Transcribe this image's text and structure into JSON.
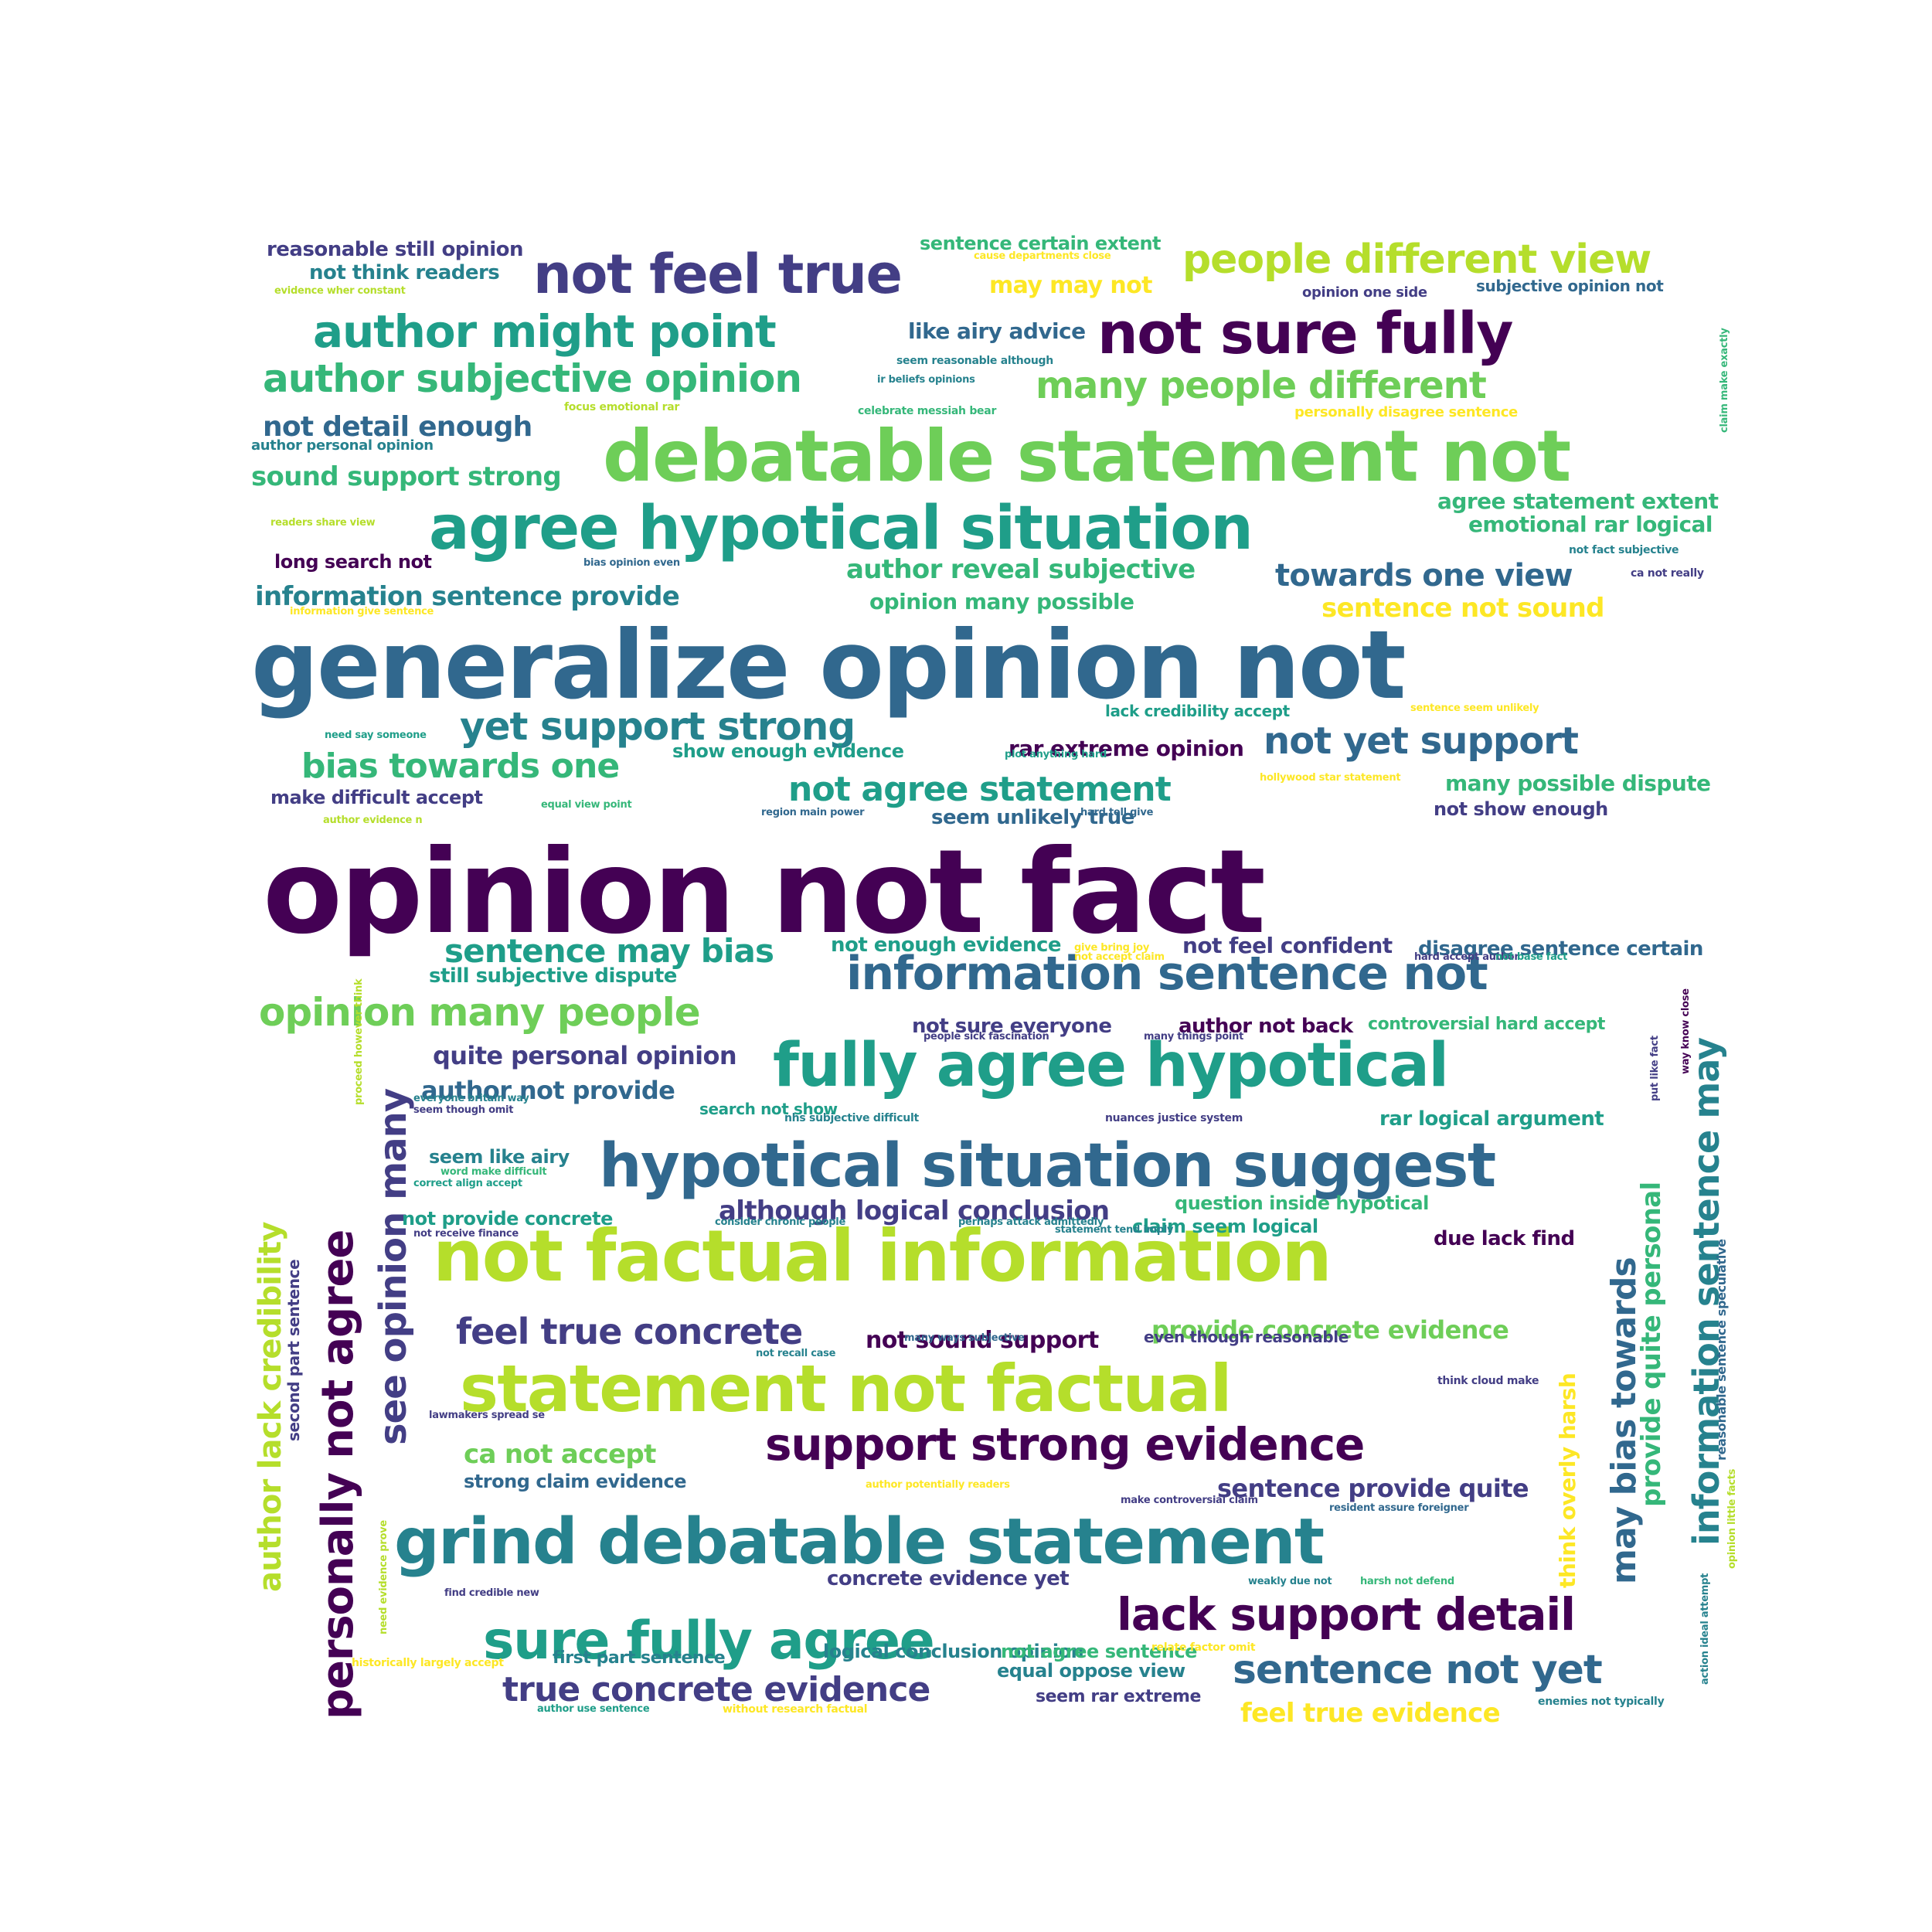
{
  "palette": {
    "c1": "#440154",
    "c2": "#433e85",
    "c3": "#31688e",
    "c4": "#26828e",
    "c5": "#1f9e89",
    "c6": "#35b779",
    "c7": "#6ece58",
    "c8": "#b5de2b",
    "c9": "#fde725"
  },
  "words": [
    {
      "text": "opinion not fact",
      "color": "c1",
      "size": 150
    },
    {
      "text": "generalize opinion not",
      "color": "c3",
      "size": 122
    },
    {
      "text": "debatable statement not",
      "color": "c7",
      "size": 92
    },
    {
      "text": "not factual information",
      "color": "c8",
      "size": 92
    },
    {
      "text": "statement not factual",
      "color": "c8",
      "size": 84
    },
    {
      "text": "grind debatable statement",
      "color": "c4",
      "size": 82
    },
    {
      "text": "hypotical situation suggest",
      "color": "c3",
      "size": 78
    },
    {
      "text": "agree hypotical situation",
      "color": "c5",
      "size": 78
    },
    {
      "text": "fully agree hypotical",
      "color": "c5",
      "size": 78
    },
    {
      "text": "not sure fully",
      "color": "c1",
      "size": 74
    },
    {
      "text": "not feel true",
      "color": "c2",
      "size": 70
    },
    {
      "text": "sure fully agree",
      "color": "c5",
      "size": 68
    },
    {
      "text": "information sentence not",
      "color": "c3",
      "size": 60
    },
    {
      "text": "support strong evidence",
      "color": "c1",
      "size": 58
    },
    {
      "text": "lack support detail",
      "color": "c1",
      "size": 58
    },
    {
      "text": "author might point",
      "color": "c5",
      "size": 58
    },
    {
      "text": "personally not agree",
      "color": "c1",
      "size": 56,
      "vertical": true
    },
    {
      "text": "people different view",
      "color": "c8",
      "size": 52
    },
    {
      "text": "sentence not yet",
      "color": "c3",
      "size": 52
    },
    {
      "text": "yet support strong",
      "color": "c4",
      "size": 50
    },
    {
      "text": "author subjective opinion",
      "color": "c6",
      "size": 50
    },
    {
      "text": "opinion many people",
      "color": "c7",
      "size": 50
    },
    {
      "text": "not yet support",
      "color": "c3",
      "size": 48
    },
    {
      "text": "see opinion many",
      "color": "c2",
      "size": 48,
      "vertical": true
    },
    {
      "text": "many people different",
      "color": "c7",
      "size": 48
    },
    {
      "text": "information sentence may",
      "color": "c4",
      "size": 46,
      "vertical": true
    },
    {
      "text": "feel true concrete",
      "color": "c2",
      "size": 46
    },
    {
      "text": "not agree statement",
      "color": "c5",
      "size": 44
    },
    {
      "text": "bias towards one",
      "color": "c6",
      "size": 44
    },
    {
      "text": "may bias towards",
      "color": "c3",
      "size": 44,
      "vertical": true
    },
    {
      "text": "true concrete evidence",
      "color": "c2",
      "size": 44
    },
    {
      "text": "sentence may bias",
      "color": "c5",
      "size": 42
    },
    {
      "text": "author lack credibility",
      "color": "c8",
      "size": 40,
      "vertical": true
    },
    {
      "text": "towards one view",
      "color": "c3",
      "size": 40
    },
    {
      "text": "not detail enough",
      "color": "c3",
      "size": 36
    },
    {
      "text": "sound support strong",
      "color": "c6",
      "size": 34
    },
    {
      "text": "author reveal subjective",
      "color": "c6",
      "size": 34
    },
    {
      "text": "information sentence provide",
      "color": "c4",
      "size": 34
    },
    {
      "text": "although logical conclusion",
      "color": "c2",
      "size": 34
    },
    {
      "text": "provide quite personal",
      "color": "c6",
      "size": 34,
      "vertical": true
    },
    {
      "text": "feel true evidence",
      "color": "c9",
      "size": 34
    },
    {
      "text": "sentence not sound",
      "color": "c9",
      "size": 34
    },
    {
      "text": "quite personal opinion",
      "color": "c2",
      "size": 32
    },
    {
      "text": "author not provide",
      "color": "c3",
      "size": 32
    },
    {
      "text": "ca not accept",
      "color": "c7",
      "size": 34
    },
    {
      "text": "provide concrete evidence",
      "color": "c7",
      "size": 32
    },
    {
      "text": "sentence provide quite",
      "color": "c2",
      "size": 32
    },
    {
      "text": "may may not",
      "color": "c9",
      "size": 30
    },
    {
      "text": "like airy advice",
      "color": "c3",
      "size": 28
    },
    {
      "text": "not sound support",
      "color": "c1",
      "size": 30
    },
    {
      "text": "think overly harsh",
      "color": "c9",
      "size": 28,
      "vertical": true
    },
    {
      "text": "agree statement extent",
      "color": "c6",
      "size": 28
    },
    {
      "text": "emotional rar logical",
      "color": "c6",
      "size": 28
    },
    {
      "text": "opinion many possible",
      "color": "c6",
      "size": 28
    },
    {
      "text": "many possible dispute",
      "color": "c6",
      "size": 28
    },
    {
      "text": "disagree sentence certain",
      "color": "c3",
      "size": 26
    },
    {
      "text": "not feel confident",
      "color": "c2",
      "size": 28
    },
    {
      "text": "not enough evidence",
      "color": "c5",
      "size": 26
    },
    {
      "text": "still subjective dispute",
      "color": "c5",
      "size": 26
    },
    {
      "text": "rar extreme opinion",
      "color": "c1",
      "size": 28
    },
    {
      "text": "rar logical argument",
      "color": "c5",
      "size": 26
    },
    {
      "text": "reasonable still opinion",
      "color": "c2",
      "size": 26
    },
    {
      "text": "not think readers",
      "color": "c4",
      "size": 26
    },
    {
      "text": "sentence certain extent",
      "color": "c6",
      "size": 24
    },
    {
      "text": "show enough evidence",
      "color": "c5",
      "size": 24
    },
    {
      "text": "make difficult accept",
      "color": "c2",
      "size": 24
    },
    {
      "text": "seem unlikely true",
      "color": "c3",
      "size": 26
    },
    {
      "text": "not show enough",
      "color": "c2",
      "size": 24
    },
    {
      "text": "long search not",
      "color": "c1",
      "size": 24
    },
    {
      "text": "not sure everyone",
      "color": "c2",
      "size": 26
    },
    {
      "text": "author not back",
      "color": "c1",
      "size": 26
    },
    {
      "text": "controversial hard accept",
      "color": "c6",
      "size": 22
    },
    {
      "text": "seem like airy",
      "color": "c4",
      "size": 24
    },
    {
      "text": "question inside hypotical",
      "color": "c6",
      "size": 24
    },
    {
      "text": "claim seem logical",
      "color": "c5",
      "size": 24
    },
    {
      "text": "not provide concrete",
      "color": "c5",
      "size": 24
    },
    {
      "text": "due lack find",
      "color": "c1",
      "size": 26
    },
    {
      "text": "strong claim evidence",
      "color": "c3",
      "size": 24
    },
    {
      "text": "concrete evidence yet",
      "color": "c2",
      "size": 26
    },
    {
      "text": "logical conclusion opinion",
      "color": "c4",
      "size": 24
    },
    {
      "text": "first part sentence",
      "color": "c4",
      "size": 22
    },
    {
      "text": "not agree sentence",
      "color": "c6",
      "size": 24
    },
    {
      "text": "equal oppose view",
      "color": "c4",
      "size": 24
    },
    {
      "text": "seem rar extreme",
      "color": "c2",
      "size": 22
    },
    {
      "text": "search not show",
      "color": "c5",
      "size": 20
    },
    {
      "text": "even though reasonable",
      "color": "c2",
      "size": 20
    },
    {
      "text": "lack credibility accept",
      "color": "c5",
      "size": 20
    },
    {
      "text": "opinion one side",
      "color": "c2",
      "size": 18
    },
    {
      "text": "subjective opinion not",
      "color": "c3",
      "size": 20
    },
    {
      "text": "author personal opinion",
      "color": "c4",
      "size": 18
    },
    {
      "text": "second part sentence",
      "color": "c2",
      "size": 20,
      "vertical": true
    },
    {
      "text": "reasonable sentence speculative",
      "color": "c3",
      "size": 16,
      "vertical": true
    },
    {
      "text": "personally disagree sentence",
      "color": "c9",
      "size": 18
    },
    {
      "text": "cause departments close",
      "color": "c9",
      "size": 13
    },
    {
      "text": "evidence wher constant",
      "color": "c8",
      "size": 13
    },
    {
      "text": "seem reasonable although",
      "color": "c4",
      "size": 14
    },
    {
      "text": "ir beliefs opinions",
      "color": "c4",
      "size": 13
    },
    {
      "text": "focus emotional rar",
      "color": "c8",
      "size": 14
    },
    {
      "text": "celebrate messiah bear",
      "color": "c6",
      "size": 14
    },
    {
      "text": "claim make exactly",
      "color": "c6",
      "size": 13,
      "vertical": true
    },
    {
      "text": "readers share view",
      "color": "c8",
      "size": 13
    },
    {
      "text": "bias opinion even",
      "color": "c3",
      "size": 13
    },
    {
      "text": "not fact subjective",
      "color": "c4",
      "size": 14
    },
    {
      "text": "ca not really",
      "color": "c2",
      "size": 14
    },
    {
      "text": "information give sentence",
      "color": "c9",
      "size": 13
    },
    {
      "text": "sentence seem unlikely",
      "color": "c9",
      "size": 13
    },
    {
      "text": "need say someone",
      "color": "c5",
      "size": 13
    },
    {
      "text": "plot anything hard",
      "color": "c5",
      "size": 13
    },
    {
      "text": "hollywood star statement",
      "color": "c9",
      "size": 13
    },
    {
      "text": "author evidence n",
      "color": "c8",
      "size": 13
    },
    {
      "text": "equal view point",
      "color": "c6",
      "size": 13
    },
    {
      "text": "region main power",
      "color": "c3",
      "size": 13
    },
    {
      "text": "hard tell give",
      "color": "c3",
      "size": 13
    },
    {
      "text": "give bring joy",
      "color": "c9",
      "size": 13
    },
    {
      "text": "not accept claim",
      "color": "c9",
      "size": 13
    },
    {
      "text": "hard accept author",
      "color": "c2",
      "size": 13
    },
    {
      "text": "not base fact",
      "color": "c5",
      "size": 13
    },
    {
      "text": "people sick fascination",
      "color": "c2",
      "size": 13
    },
    {
      "text": "many things point",
      "color": "c2",
      "size": 13
    },
    {
      "text": "proceed however think",
      "color": "c8",
      "size": 13,
      "vertical": true
    },
    {
      "text": "everyone britain way",
      "color": "c4",
      "size": 13
    },
    {
      "text": "seem though omit",
      "color": "c2",
      "size": 13
    },
    {
      "text": "nhs subjective difficult",
      "color": "c4",
      "size": 14
    },
    {
      "text": "nuances justice system",
      "color": "c2",
      "size": 14
    },
    {
      "text": "put like fact",
      "color": "c2",
      "size": 13,
      "vertical": true
    },
    {
      "text": "way know close",
      "color": "c1",
      "size": 13,
      "vertical": true
    },
    {
      "text": "word make difficult",
      "color": "c6",
      "size": 13
    },
    {
      "text": "correct align accept",
      "color": "c5",
      "size": 13
    },
    {
      "text": "consider chronic people",
      "color": "c4",
      "size": 13
    },
    {
      "text": "perhaps attack admittedly",
      "color": "c4",
      "size": 13
    },
    {
      "text": "not receive finance",
      "color": "c2",
      "size": 13
    },
    {
      "text": "statement tend imply",
      "color": "c4",
      "size": 13
    },
    {
      "text": "many ways subjective",
      "color": "c3",
      "size": 13
    },
    {
      "text": "not recall case",
      "color": "c4",
      "size": 13
    },
    {
      "text": "think cloud make",
      "color": "c2",
      "size": 14
    },
    {
      "text": "lawmakers spread se",
      "color": "c2",
      "size": 13
    },
    {
      "text": "author potentially readers",
      "color": "c9",
      "size": 13
    },
    {
      "text": "make controversial claim",
      "color": "c2",
      "size": 13
    },
    {
      "text": "resident assure foreigner",
      "color": "c3",
      "size": 13
    },
    {
      "text": "opinion little facts",
      "color": "c8",
      "size": 13,
      "vertical": true
    },
    {
      "text": "need evidence prove",
      "color": "c8",
      "size": 13,
      "vertical": true
    },
    {
      "text": "find credible new",
      "color": "c2",
      "size": 13
    },
    {
      "text": "weakly due not",
      "color": "c4",
      "size": 13
    },
    {
      "text": "harsh not defend",
      "color": "c6",
      "size": 13
    },
    {
      "text": "action ideal attempt",
      "color": "c4",
      "size": 13,
      "vertical": true
    },
    {
      "text": "historically largely accept",
      "color": "c9",
      "size": 14
    },
    {
      "text": "relate factor omit",
      "color": "c9",
      "size": 14
    },
    {
      "text": "author use sentence",
      "color": "c5",
      "size": 13
    },
    {
      "text": "without research factual",
      "color": "c9",
      "size": 14
    },
    {
      "text": "enemies not typically",
      "color": "c4",
      "size": 14
    }
  ]
}
